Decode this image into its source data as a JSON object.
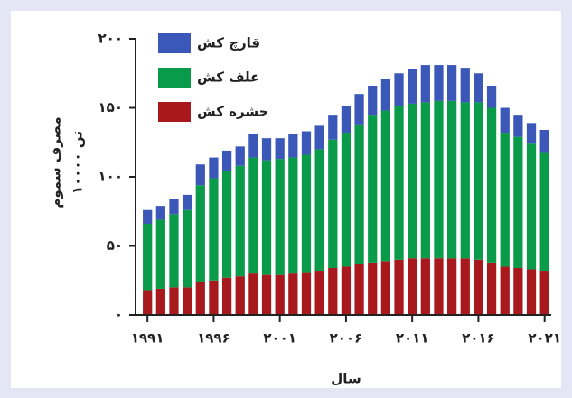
{
  "chart_data": {
    "type": "stacked-bar",
    "ylabel": [
      "مصرف سموم",
      "۱۰۰۰۰ تن"
    ],
    "xlabel": "سال",
    "x": [
      1991,
      1992,
      1993,
      1994,
      1995,
      1996,
      1997,
      1998,
      1999,
      2000,
      2001,
      2002,
      2003,
      2004,
      2005,
      2006,
      2007,
      2008,
      2009,
      2010,
      2011,
      2012,
      2013,
      2014,
      2015,
      2016,
      2017,
      2018,
      2019,
      2020,
      2021
    ],
    "series": [
      {
        "name": "حشره کش",
        "color": "#a8191e",
        "values": [
          18,
          19,
          20,
          20,
          24,
          25,
          27,
          28,
          30,
          29,
          29,
          30,
          31,
          32,
          34,
          35,
          37,
          38,
          39,
          40,
          41,
          41,
          41,
          41,
          41,
          40,
          38,
          35,
          34,
          33,
          32
        ]
      },
      {
        "name": "علف کش",
        "color": "#0a9b4a",
        "values": [
          48,
          50,
          53,
          56,
          70,
          74,
          77,
          80,
          84,
          83,
          84,
          84,
          85,
          88,
          93,
          97,
          101,
          107,
          109,
          111,
          112,
          113,
          114,
          114,
          113,
          114,
          112,
          97,
          95,
          91,
          86
        ]
      },
      {
        "name": "قارچ کش",
        "color": "#3b58b8",
        "values": [
          10,
          10,
          11,
          11,
          15,
          15,
          15,
          14,
          17,
          16,
          15,
          17,
          17,
          17,
          18,
          19,
          22,
          21,
          23,
          24,
          25,
          27,
          26,
          26,
          25,
          21,
          16,
          18,
          16,
          15,
          16
        ]
      }
    ],
    "xlim": [
      1990.1,
      2021.5
    ],
    "xticks": [
      {
        "value": 1991,
        "label": "۱۹۹۱"
      },
      {
        "value": 1996,
        "label": "۱۹۹۶"
      },
      {
        "value": 2001,
        "label": "۲۰۰۱"
      },
      {
        "value": 2006,
        "label": "۲۰۰۶"
      },
      {
        "value": 2011,
        "label": "۲۰۱۱"
      },
      {
        "value": 2016,
        "label": "۲۰۱۶"
      },
      {
        "value": 2021,
        "label": "۲۰۲۱"
      }
    ],
    "ylim": [
      0,
      200
    ],
    "yticks": [
      {
        "value": 0,
        "label": "۰"
      },
      {
        "value": 50,
        "label": "۵۰"
      },
      {
        "value": 100,
        "label": "۱۰۰"
      },
      {
        "value": 150,
        "label": "۱۵۰"
      },
      {
        "value": 200,
        "label": "۲۰۰"
      }
    ]
  }
}
